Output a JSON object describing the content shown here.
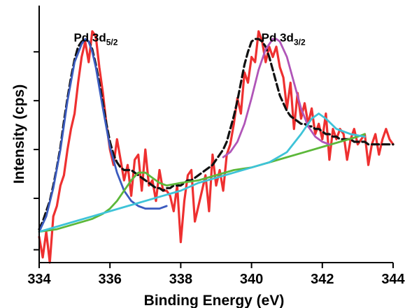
{
  "chart_data": {
    "type": "line",
    "title": "",
    "xlabel": "Binding Energy (eV)",
    "ylabel": "Intensity (cps)",
    "xlim": [
      334,
      344
    ],
    "ylim": [
      0,
      100
    ],
    "x_ticks": [
      "334",
      "336",
      "338",
      "340",
      "342",
      "344"
    ],
    "y_tick_values": [
      5,
      25,
      44,
      63,
      82
    ],
    "grid": false,
    "legend": "none",
    "annotations": [
      {
        "text": "Pd 3d",
        "sub": "5/2",
        "x": 335.6,
        "y": 86
      },
      {
        "text": "Pd 3d",
        "sub": "3/2",
        "x": 340.9,
        "y": 86
      }
    ],
    "series": [
      {
        "color": "#ee3030",
        "style": "raw",
        "x": [
          334.0,
          334.1,
          334.2,
          334.3,
          334.4,
          334.5,
          334.6,
          334.7,
          334.8,
          334.9,
          335.0,
          335.1,
          335.2,
          335.3,
          335.4,
          335.5,
          335.6,
          335.7,
          335.8,
          335.9,
          336.0,
          336.1,
          336.2,
          336.3,
          336.4,
          336.5,
          336.6,
          336.7,
          336.8,
          336.9,
          337.0,
          337.1,
          337.2,
          337.3,
          337.4,
          337.5,
          337.6,
          337.7,
          337.8,
          337.9,
          338.0,
          338.1,
          338.2,
          338.3,
          338.4,
          338.5,
          338.6,
          338.7,
          338.8,
          338.9,
          339.0,
          339.1,
          339.2,
          339.3,
          339.4,
          339.5,
          339.6,
          339.7,
          339.8,
          339.9,
          340.0,
          340.1,
          340.2,
          340.3,
          340.4,
          340.5,
          340.6,
          340.7,
          340.8,
          340.9,
          341.0,
          341.1,
          341.2,
          341.3,
          341.4,
          341.5,
          341.6,
          341.7,
          341.8,
          341.9,
          342.0,
          342.1,
          342.2,
          342.3,
          342.4,
          342.5,
          342.6,
          342.7,
          342.8,
          342.9,
          343.0,
          343.1,
          343.2,
          343.3,
          343.4,
          343.5,
          343.6,
          343.7,
          343.8,
          343.9,
          344.0
        ],
        "y": [
          10,
          2,
          12,
          0,
          18,
          22,
          30,
          34,
          44,
          52,
          58,
          70,
          80,
          86,
          78,
          90,
          88,
          76,
          66,
          54,
          44,
          38,
          48,
          40,
          32,
          38,
          26,
          40,
          42,
          28,
          44,
          30,
          32,
          24,
          36,
          28,
          28,
          26,
          20,
          30,
          8,
          24,
          34,
          36,
          16,
          22,
          28,
          34,
          20,
          42,
          30,
          36,
          28,
          42,
          46,
          54,
          64,
          58,
          74,
          70,
          80,
          78,
          90,
          86,
          78,
          84,
          80,
          84,
          76,
          72,
          60,
          70,
          52,
          66,
          56,
          62,
          54,
          60,
          50,
          54,
          48,
          58,
          40,
          52,
          48,
          52,
          50,
          40,
          48,
          52,
          46,
          48,
          50,
          38,
          46,
          50,
          42,
          48,
          52,
          48,
          46
        ]
      },
      {
        "color": "#111111",
        "style": "envelope",
        "x": [
          334.0,
          334.1,
          334.2,
          334.3,
          334.4,
          334.5,
          334.6,
          334.7,
          334.8,
          334.9,
          335.0,
          335.1,
          335.2,
          335.3,
          335.4,
          335.5,
          335.6,
          335.7,
          335.8,
          335.9,
          336.0,
          336.1,
          336.2,
          336.3,
          336.4,
          336.5,
          336.6,
          336.7,
          336.8,
          336.9,
          337.0,
          337.1,
          337.2,
          337.3,
          337.4,
          337.5,
          337.6,
          337.7,
          337.8,
          337.9,
          338.0,
          338.1,
          338.2,
          338.3,
          338.4,
          338.5,
          338.6,
          338.7,
          338.8,
          338.9,
          339.0,
          339.1,
          339.2,
          339.3,
          339.4,
          339.5,
          339.6,
          339.7,
          339.8,
          339.9,
          340.0,
          340.1,
          340.2,
          340.3,
          340.4,
          340.5,
          340.6,
          340.7,
          340.8,
          340.9,
          341.0,
          341.1,
          341.2,
          341.3,
          341.4,
          341.5,
          341.6,
          341.7,
          341.8,
          341.9,
          342.0,
          342.1,
          342.2,
          342.3,
          342.4,
          342.5,
          342.6,
          342.7,
          342.8,
          342.9,
          343.0,
          343.1,
          343.2,
          343.3,
          343.4,
          343.5,
          343.6,
          343.7,
          343.8,
          343.9,
          344.0
        ],
        "y": [
          13,
          16,
          20,
          24,
          30,
          37,
          45,
          55,
          64,
          72,
          79,
          84,
          86,
          87,
          86,
          83,
          77,
          70,
          62,
          54,
          47,
          42,
          39,
          37,
          36,
          36,
          36,
          35,
          34,
          33,
          32,
          31,
          30,
          29,
          29,
          28,
          29,
          29,
          30,
          30,
          30,
          31,
          32,
          32,
          33,
          34,
          35,
          36,
          37,
          38,
          40,
          42,
          44,
          47,
          52,
          57,
          63,
          70,
          77,
          82,
          86,
          87,
          87,
          86,
          84,
          80,
          75,
          70,
          65,
          62,
          59,
          57,
          56,
          55,
          54,
          54,
          53,
          53,
          52,
          52,
          51,
          50,
          50,
          49,
          49,
          48,
          48,
          48,
          48,
          47,
          47,
          47,
          47,
          46,
          46,
          46,
          46,
          46,
          46,
          46,
          46
        ]
      },
      {
        "color": "#3b5bbf",
        "style": "component",
        "x": [
          334.0,
          334.2,
          334.4,
          334.6,
          334.8,
          335.0,
          335.2,
          335.3,
          335.4,
          335.5,
          335.6,
          335.8,
          336.0,
          336.2,
          336.4,
          336.6,
          336.8,
          337.0,
          337.2,
          337.4,
          337.6
        ],
        "y": [
          12,
          18,
          29,
          44,
          63,
          78,
          85,
          87,
          86,
          82,
          76,
          60,
          45,
          35,
          28,
          24,
          22,
          21,
          21,
          21,
          22
        ]
      },
      {
        "color": "#5cb83a",
        "style": "component",
        "x": [
          334.0,
          334.5,
          335.0,
          335.5,
          335.8,
          336.0,
          336.2,
          336.4,
          336.6,
          336.8,
          337.0,
          337.2,
          337.4,
          337.6,
          338.0,
          338.5,
          339.0,
          339.5,
          340.0,
          340.5,
          341.0,
          341.5,
          342.0,
          342.5,
          343.0,
          343.2
        ],
        "y": [
          12,
          13,
          15,
          17,
          19,
          21,
          24,
          28,
          32,
          35,
          35,
          33,
          31,
          30,
          31,
          32,
          34,
          36,
          37,
          39,
          41,
          43,
          45,
          47,
          49,
          50
        ]
      },
      {
        "color": "#b055b8",
        "style": "component",
        "x": [
          339.2,
          339.4,
          339.6,
          339.8,
          340.0,
          340.2,
          340.4,
          340.6,
          340.7,
          340.8,
          341.0,
          341.2,
          341.4,
          341.6,
          341.8,
          342.0,
          342.2
        ],
        "y": [
          41,
          43,
          47,
          54,
          64,
          75,
          83,
          87,
          87,
          86,
          80,
          70,
          60,
          53,
          49,
          47,
          46
        ]
      },
      {
        "color": "#3ec3d8",
        "style": "component",
        "x": [
          334.0,
          334.5,
          335.0,
          335.5,
          336.0,
          336.5,
          337.0,
          337.5,
          338.0,
          338.5,
          339.0,
          339.5,
          340.0,
          340.5,
          341.0,
          341.4,
          341.7,
          341.9,
          342.1,
          342.4,
          342.8,
          343.2
        ],
        "y": [
          12,
          14,
          16,
          18,
          20,
          22,
          24,
          26,
          28,
          31,
          33,
          35,
          37,
          39,
          43,
          50,
          56,
          58,
          56,
          52,
          50,
          49
        ]
      }
    ]
  }
}
